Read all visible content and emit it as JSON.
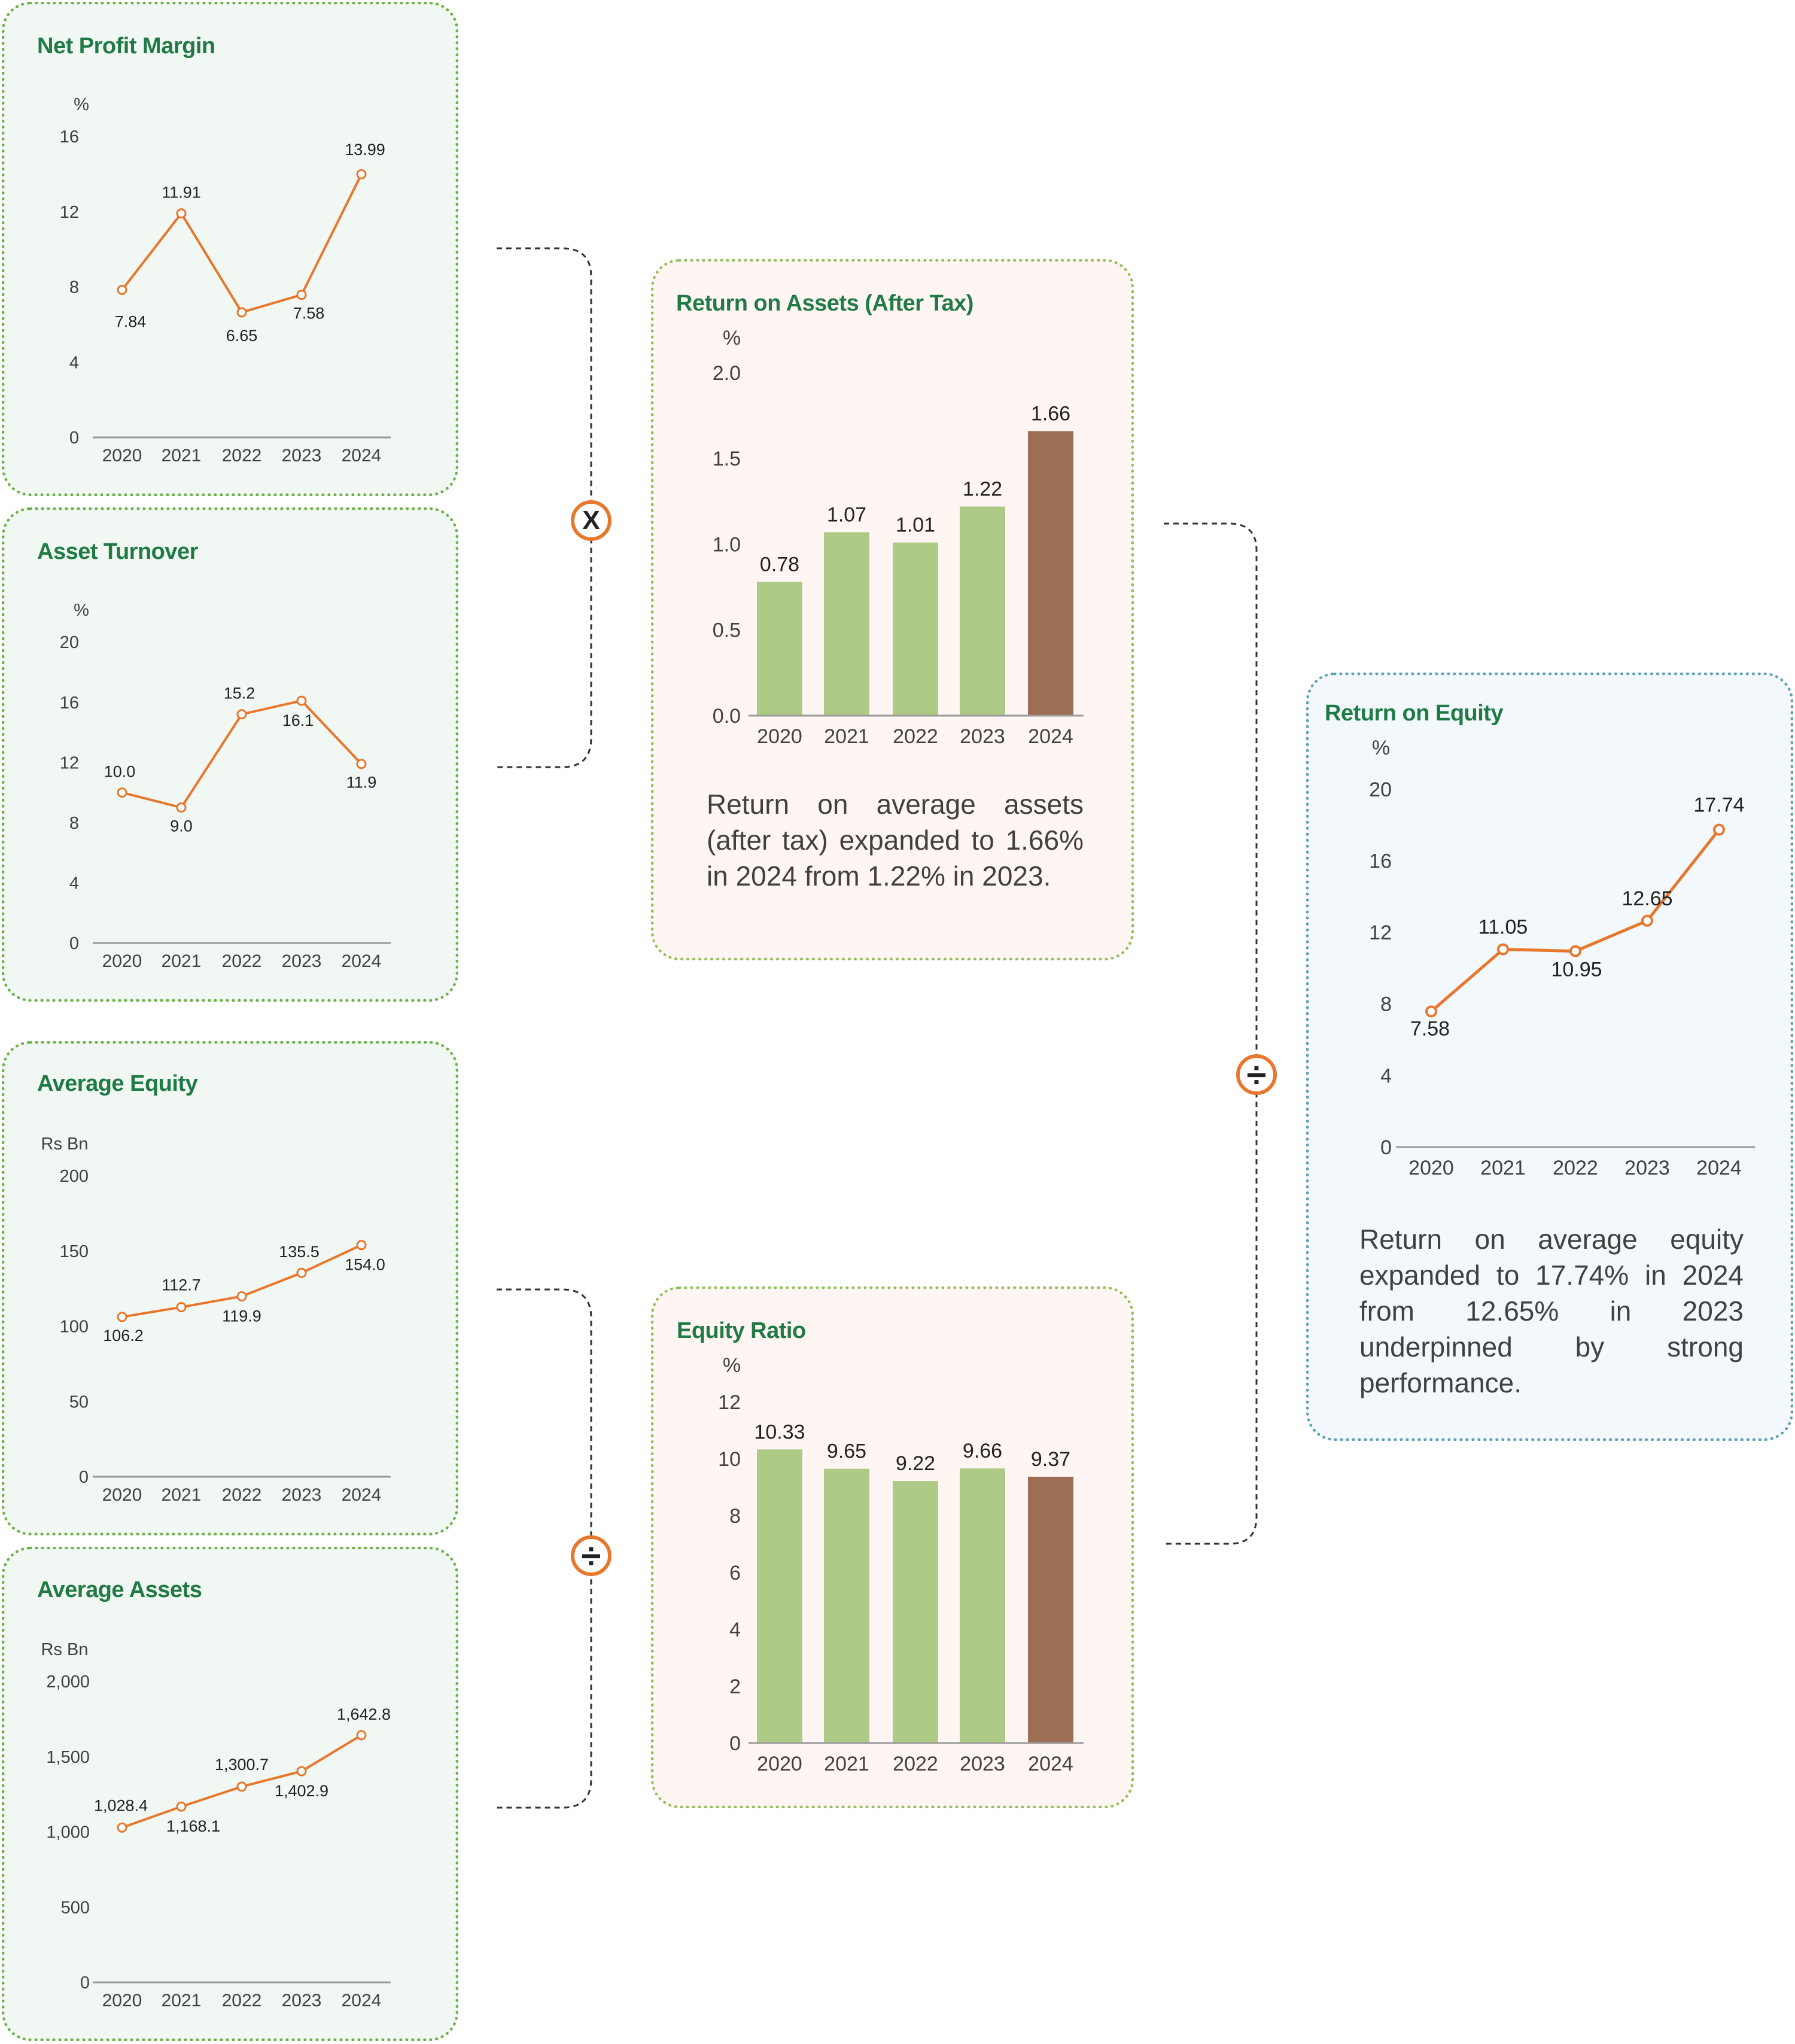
{
  "colors": {
    "line": "#e8772e",
    "bar": "#adcb86",
    "bar_highlight": "#9c6e53",
    "axis": "#9a9a9a",
    "title": "#1f7a45"
  },
  "operators": {
    "multiply": "X",
    "divide_equity": "÷",
    "divide_roe": "÷"
  },
  "texts": {
    "roa_note": "Return on average assets (after tax) expanded to 1.66% in 2024 from 1.22% in 2023.",
    "roe_note": "Return on average equity expanded to 17.74% in 2024 from 12.65% in 2023 underpinned by strong performance."
  },
  "chart_data": [
    {
      "id": "npm",
      "type": "line",
      "title": "Net Profit Margin",
      "ylabel": "%",
      "categories": [
        "2020",
        "2021",
        "2022",
        "2023",
        "2024"
      ],
      "values": [
        7.84,
        11.91,
        6.65,
        7.58,
        13.99
      ],
      "labels": [
        "7.84",
        "11.91",
        "6.65",
        "7.58",
        "13.99"
      ],
      "ylim": [
        0,
        16
      ],
      "yticks": [
        "0",
        "4",
        "8",
        "12",
        "16"
      ],
      "grid": false
    },
    {
      "id": "turnover",
      "type": "line",
      "title": "Asset Turnover",
      "ylabel": "%",
      "categories": [
        "2020",
        "2021",
        "2022",
        "2023",
        "2024"
      ],
      "values": [
        10.0,
        9.0,
        15.2,
        16.1,
        11.9
      ],
      "labels": [
        "10.0",
        "9.0",
        "15.2",
        "16.1",
        "11.9"
      ],
      "ylim": [
        0,
        20
      ],
      "yticks": [
        "0",
        "4",
        "8",
        "12",
        "16",
        "20"
      ],
      "grid": false
    },
    {
      "id": "avgequity",
      "type": "line",
      "title": "Average Equity",
      "ylabel": "Rs Bn",
      "categories": [
        "2020",
        "2021",
        "2022",
        "2023",
        "2024"
      ],
      "values": [
        106.2,
        112.7,
        119.9,
        135.5,
        154.0
      ],
      "labels": [
        "106.2",
        "112.7",
        "119.9",
        "135.5",
        "154.0"
      ],
      "ylim": [
        0,
        200
      ],
      "yticks": [
        "0",
        "50",
        "100",
        "150",
        "200"
      ],
      "grid": false
    },
    {
      "id": "avgassets",
      "type": "line",
      "title": "Average Assets",
      "ylabel": "Rs Bn",
      "categories": [
        "2020",
        "2021",
        "2022",
        "2023",
        "2024"
      ],
      "values": [
        1028.4,
        1168.1,
        1300.7,
        1402.9,
        1642.8
      ],
      "labels": [
        "1,028.4",
        "1,168.1",
        "1,300.7",
        "1,402.9",
        "1,642.8"
      ],
      "ylim": [
        0,
        2000
      ],
      "yticks": [
        "0",
        "500",
        "1,000",
        "1,500",
        "2,000"
      ],
      "grid": false
    },
    {
      "id": "roa",
      "type": "bar",
      "title": "Return on Assets (After Tax)",
      "ylabel": "%",
      "categories": [
        "2020",
        "2021",
        "2022",
        "2023",
        "2024"
      ],
      "values": [
        0.78,
        1.07,
        1.01,
        1.22,
        1.66
      ],
      "labels": [
        "0.78",
        "1.07",
        "1.01",
        "1.22",
        "1.66"
      ],
      "highlight_index": 4,
      "ylim": [
        0,
        2.0
      ],
      "yticks": [
        "0.0",
        "0.5",
        "1.0",
        "1.5",
        "2.0"
      ],
      "grid": false
    },
    {
      "id": "equityratio",
      "type": "bar",
      "title": "Equity Ratio",
      "ylabel": "%",
      "categories": [
        "2020",
        "2021",
        "2022",
        "2023",
        "2024"
      ],
      "values": [
        10.33,
        9.65,
        9.22,
        9.66,
        9.37
      ],
      "labels": [
        "10.33",
        "9.65",
        "9.22",
        "9.66",
        "9.37"
      ],
      "highlight_index": 4,
      "ylim": [
        0,
        12
      ],
      "yticks": [
        "0",
        "2",
        "4",
        "6",
        "8",
        "10",
        "12"
      ],
      "grid": false
    },
    {
      "id": "roe",
      "type": "line",
      "title": "Return on Equity",
      "ylabel": "%",
      "categories": [
        "2020",
        "2021",
        "2022",
        "2023",
        "2024"
      ],
      "values": [
        7.58,
        11.05,
        10.95,
        12.65,
        17.74
      ],
      "labels": [
        "7.58",
        "11.05",
        "10.95",
        "12.65",
        "17.74"
      ],
      "ylim": [
        0,
        20
      ],
      "yticks": [
        "0",
        "4",
        "8",
        "12",
        "16",
        "20"
      ],
      "grid": false
    }
  ]
}
